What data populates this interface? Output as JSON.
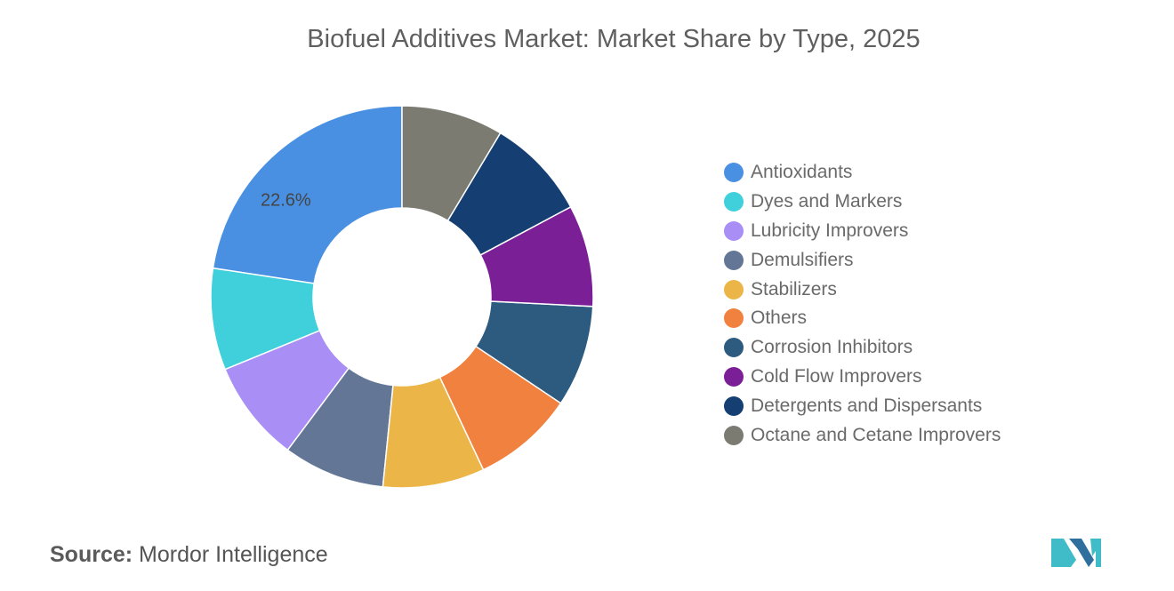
{
  "title": "Biofuel Additives Market: Market Share by Type, 2025",
  "source": {
    "label": "Source:",
    "value": "Mordor Intelligence"
  },
  "chart_data": {
    "type": "pie",
    "variant": "donut",
    "title": "Biofuel Additives Market: Market Share by Type, 2025",
    "start_angle_deg": 0,
    "direction": "counterclockwise",
    "legend_position": "right",
    "series": [
      {
        "name": "Antioxidants",
        "value": 22.6,
        "label": "22.6%",
        "color": "#4a90e2"
      },
      {
        "name": "Dyes and Markers",
        "value": 8.6,
        "color": "#3fd0db"
      },
      {
        "name": "Lubricity Improvers",
        "value": 8.6,
        "color": "#a98ef5"
      },
      {
        "name": "Demulsifiers",
        "value": 8.6,
        "color": "#647696"
      },
      {
        "name": "Stabilizers",
        "value": 8.6,
        "color": "#ebb548"
      },
      {
        "name": "Others",
        "value": 8.6,
        "color": "#f0813f"
      },
      {
        "name": "Corrosion Inhibitors",
        "value": 8.6,
        "color": "#2c5b7f"
      },
      {
        "name": "Cold Flow Improvers",
        "value": 8.6,
        "color": "#7a1f96"
      },
      {
        "name": "Detergents and Dispersants",
        "value": 8.6,
        "color": "#153f73"
      },
      {
        "name": "Octane and Cetane Improvers",
        "value": 8.6,
        "color": "#7b7b72"
      }
    ]
  },
  "logo": {
    "colors": [
      "#2f6f9e",
      "#3fbcc7"
    ]
  }
}
